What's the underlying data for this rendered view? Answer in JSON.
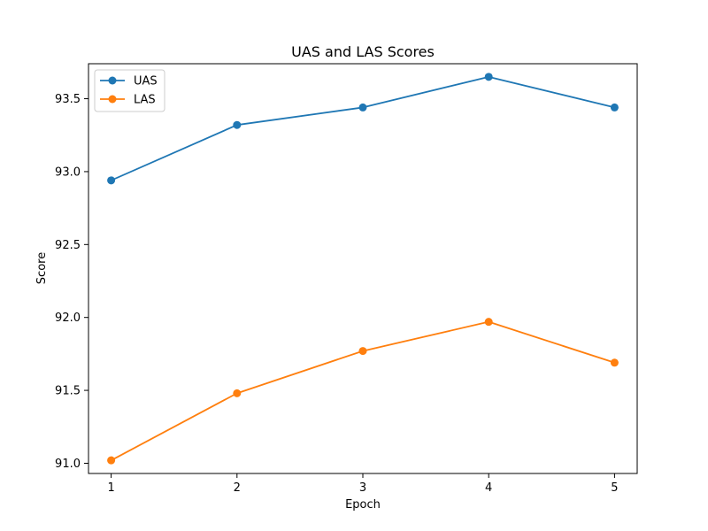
{
  "chart_data": {
    "type": "line",
    "title": "UAS and LAS Scores",
    "xlabel": "Epoch",
    "ylabel": "Score",
    "x": [
      1,
      2,
      3,
      4,
      5
    ],
    "xticks": [
      "1",
      "2",
      "3",
      "4",
      "5"
    ],
    "yticks": [
      "91.0",
      "91.5",
      "92.0",
      "92.5",
      "93.0",
      "93.5"
    ],
    "ylim": [
      90.93,
      93.74
    ],
    "xlim": [
      0.82,
      5.18
    ],
    "grid": false,
    "legend_position": "top-left",
    "series": [
      {
        "name": "UAS",
        "color": "#1f77b4",
        "marker": "circle",
        "values": [
          92.94,
          93.32,
          93.44,
          93.65,
          93.44
        ]
      },
      {
        "name": "LAS",
        "color": "#ff7f0e",
        "marker": "circle",
        "values": [
          91.02,
          91.48,
          91.77,
          91.97,
          91.69
        ]
      }
    ]
  }
}
